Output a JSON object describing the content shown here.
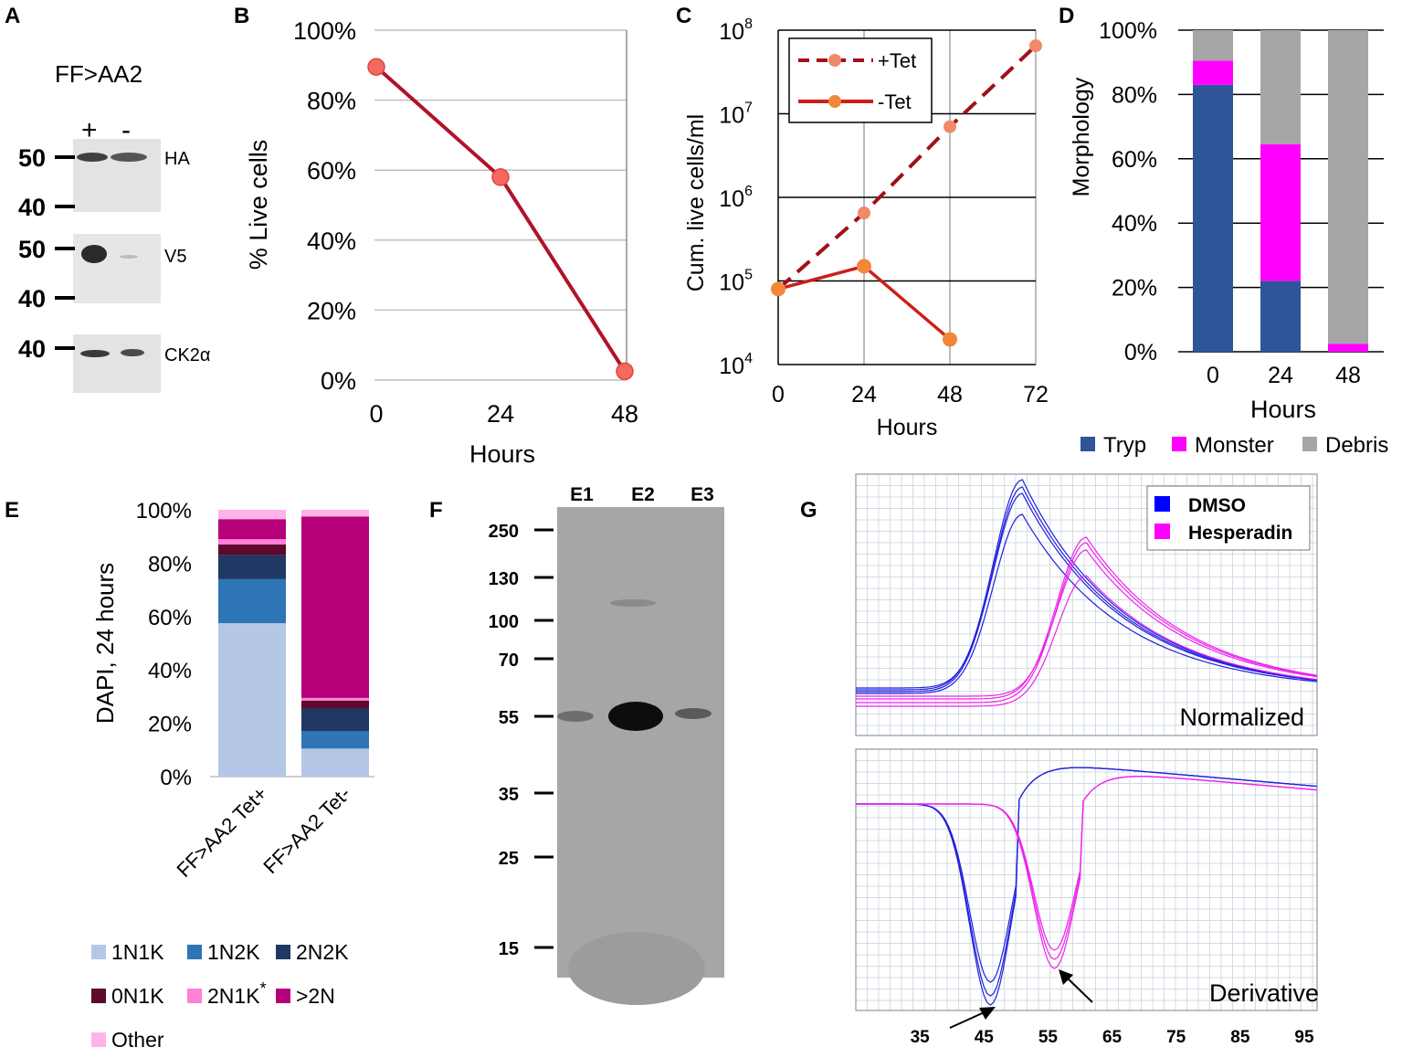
{
  "panel_letters": [
    "A",
    "B",
    "C",
    "D",
    "E",
    "F",
    "G"
  ],
  "panel_a": {
    "title": "FF>AA2",
    "lanes": [
      "+",
      "-"
    ],
    "blots": [
      {
        "name": "HA",
        "markers": [
          "50",
          "40"
        ]
      },
      {
        "name": "V5",
        "markers": [
          "50",
          "40"
        ]
      },
      {
        "name": "CK2α",
        "markers": [
          "40"
        ]
      }
    ]
  },
  "panel_f": {
    "lanes": [
      "E1",
      "E2",
      "E3"
    ],
    "markers": [
      "250",
      "130",
      "100",
      "70",
      "55",
      "35",
      "25",
      "15"
    ]
  },
  "chart_data": [
    {
      "id": "B",
      "type": "line",
      "title": "",
      "xlabel": "Hours",
      "ylabel": "% Live cells",
      "categories": [
        "0",
        "24",
        "48"
      ],
      "series": [
        {
          "name": "Live cells",
          "values": [
            89.5,
            58,
            2.5
          ]
        }
      ],
      "ylim": [
        0,
        100
      ],
      "yticks": [
        "0%",
        "20%",
        "40%",
        "60%",
        "80%",
        "100%"
      ],
      "colors": {
        "line": "#b0122a",
        "marker": "#f4695f"
      }
    },
    {
      "id": "C",
      "type": "line",
      "yscale": "log",
      "xlabel": "Hours",
      "ylabel": "Cum. live cells/ml",
      "categories": [
        "0",
        "24",
        "48",
        "72"
      ],
      "yticks": [
        {
          "base": "10",
          "exp": "4"
        },
        {
          "base": "10",
          "exp": "5"
        },
        {
          "base": "10",
          "exp": "6"
        },
        {
          "base": "10",
          "exp": "7"
        },
        {
          "base": "10",
          "exp": "8"
        }
      ],
      "ylim_log10": [
        4,
        8
      ],
      "series": [
        {
          "name": "+Tet",
          "values": [
            80000,
            650000,
            7000000,
            65000000
          ],
          "dash": true
        },
        {
          "name": "-Tet",
          "values": [
            80000,
            150000,
            20000,
            null
          ],
          "dash": false
        }
      ],
      "legend": [
        "+Tet",
        "-Tet"
      ],
      "colors": {
        "plus": "#a01018",
        "minus": "#cc1f1a",
        "marker_plus": "#f08a6a",
        "marker_minus": "#f2873a"
      }
    },
    {
      "id": "D",
      "type": "bar",
      "stacked": true,
      "xlabel": "Hours",
      "ylabel": "Morphology",
      "categories": [
        "0",
        "24",
        "48"
      ],
      "series": [
        {
          "name": "Tryp",
          "values": [
            83,
            22,
            0
          ],
          "color": "#2e5597"
        },
        {
          "name": "Monster",
          "values": [
            7.5,
            42.5,
            2.5
          ],
          "color": "#ff00ff"
        },
        {
          "name": "Debris",
          "values": [
            9.5,
            35.5,
            97.5
          ],
          "color": "#a6a6a6"
        }
      ],
      "ylim": [
        0,
        100
      ],
      "yticks": [
        "0%",
        "20%",
        "40%",
        "60%",
        "80%",
        "100%"
      ]
    },
    {
      "id": "E",
      "type": "bar",
      "stacked": true,
      "ylabel": "DAPI, 24 hours",
      "categories": [
        "FF>AA2 Tet+",
        "FF>AA2 Tet-"
      ],
      "series": [
        {
          "name": "1N1K",
          "values": [
            57.5,
            10.5
          ],
          "color": "#b4c7e7"
        },
        {
          "name": "1N2K",
          "values": [
            16.5,
            6.5
          ],
          "color": "#2e75b6"
        },
        {
          "name": "2N2K",
          "values": [
            9,
            8.5
          ],
          "color": "#1f3864"
        },
        {
          "name": "0N1K",
          "values": [
            4,
            3
          ],
          "color": "#5c0a2e"
        },
        {
          "name": "2N1K",
          "values": [
            2,
            1
          ],
          "color": "#ff80d5"
        },
        {
          "name": ">2N",
          "values": [
            7.5,
            68
          ],
          "color": "#b5007a"
        },
        {
          "name": "Other",
          "values": [
            3.5,
            2.5
          ],
          "color": "#ffb3e6"
        }
      ],
      "legend_asterisk": "*",
      "ylim": [
        0,
        100
      ],
      "yticks": [
        "0%",
        "20%",
        "40%",
        "60%",
        "80%",
        "100%"
      ]
    },
    {
      "id": "G",
      "type": "line",
      "title": "",
      "xlabel": "",
      "xticks": [
        "35",
        "45",
        "55",
        "65",
        "75",
        "85",
        "95"
      ],
      "xlim": [
        25,
        97
      ],
      "subplots": [
        "Normalized",
        "Derivative"
      ],
      "legend": [
        {
          "name": "DMSO",
          "color": "#0000ff"
        },
        {
          "name": "Hesperadin",
          "color": "#ff00ff"
        }
      ],
      "series": [
        {
          "name": "DMSO",
          "normalized_peak_x": 51,
          "derivative_min_x": 46
        },
        {
          "name": "Hesperadin",
          "normalized_peak_x": 61,
          "derivative_min_x": 56
        }
      ]
    }
  ]
}
